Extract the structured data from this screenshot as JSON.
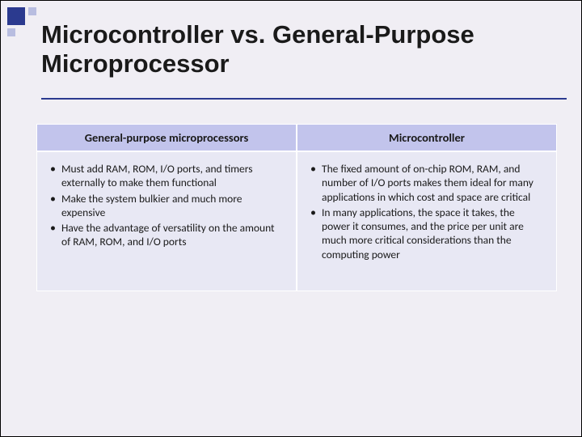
{
  "title": "Microcontroller vs. General-Purpose Microprocessor",
  "colors": {
    "page_bg": "#f0eef4",
    "accent": "#2b3a8f",
    "accent_light": "#b8bde0",
    "header_bg": "#c2c4ec",
    "cell_bg": "#e8e8f4",
    "cell_border": "#ffffff",
    "text": "#1a1a1a"
  },
  "typography": {
    "title_fontsize": 31,
    "title_weight": "bold",
    "header_fontsize": 14.5,
    "body_fontsize": 13.5,
    "font_family": "Arial"
  },
  "table": {
    "columns": [
      {
        "header": "General-purpose microprocessors"
      },
      {
        "header": "Microcontroller"
      }
    ],
    "left_bullets": [
      "Must add RAM, ROM, I/O ports, and timers externally to make them functional",
      "Make the system bulkier and much more expensive",
      "Have the advantage of versatility on the amount of RAM, ROM, and I/O ports"
    ],
    "right_bullets": [
      "The fixed amount of on-chip ROM, RAM, and number of I/O ports makes them ideal for many applications in which cost and space are critical",
      "In many applications, the space it takes, the power it consumes, and the price per unit are much more critical considerations than the computing power"
    ]
  }
}
